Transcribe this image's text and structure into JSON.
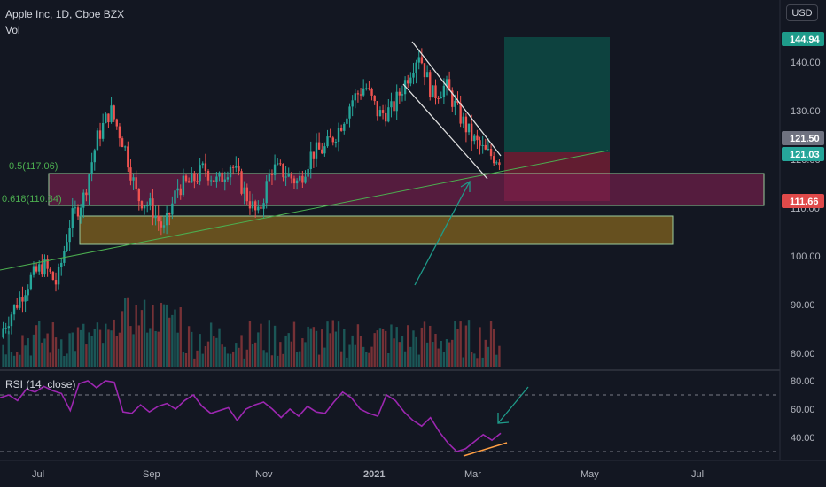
{
  "header": {
    "title": "Apple Inc, 1D, Cboe BZX",
    "volume_label": "Vol",
    "currency": "USD"
  },
  "rsi_panel": {
    "label": "RSI (14, close)",
    "ticks": [
      "80.00",
      "60.00",
      "40.00"
    ]
  },
  "price_axis": {
    "ticks": [
      "140.00",
      "130.00",
      "120.00",
      "110.00",
      "100.00",
      "90.00",
      "80.00"
    ],
    "tags": [
      {
        "text": "144.94",
        "bg": "#1e9b8a",
        "fg": "#ffffff"
      },
      {
        "text": "121.50",
        "bg": "#6f7280",
        "fg": "#ffffff"
      },
      {
        "text": "121.03",
        "bg": "#26a69a",
        "fg": "#ffffff"
      },
      {
        "text": "111.66",
        "bg": "#e04a4a",
        "fg": "#ffffff"
      }
    ]
  },
  "time_axis": {
    "labels": [
      "Jul",
      "Sep",
      "Nov",
      "2021",
      "Mar",
      "May",
      "Jul"
    ]
  },
  "fib_labels": [
    "0.5(117.06)",
    "0.618(110.34)"
  ],
  "colors": {
    "background": "#131722",
    "up": "#26a69a",
    "down": "#ef5350",
    "rsi_line": "#9c27b0",
    "trendline": "#4caf50",
    "fib_zone": "#7a1f4e",
    "support_zone": "#8a6a1e",
    "target_zone": "#0d4a44",
    "stop_zone": "#6b1e33",
    "arrow": "#1e9b8a"
  },
  "chart_data": [
    {
      "type": "candlestick",
      "title": "Apple Inc, 1D, Cboe BZX",
      "ylabel": "USD",
      "ylim": [
        78,
        150
      ],
      "x_labels": [
        "Jul",
        "Sep",
        "Nov",
        "2021",
        "Mar",
        "May",
        "Jul"
      ],
      "series": [
        {
          "name": "close",
          "points": [
            [
              "Jun",
              86
            ],
            [
              "Jul",
              91
            ],
            [
              "Jul",
              96
            ],
            [
              "Jul",
              99
            ],
            [
              "Jul",
              95
            ],
            [
              "Aug",
              108
            ],
            [
              "Aug",
              113
            ],
            [
              "Aug",
              125
            ],
            [
              "Aug",
              131
            ],
            [
              "Sep",
              124
            ],
            [
              "Sep",
              113
            ],
            [
              "Sep",
              111
            ],
            [
              "Sep",
              106
            ],
            [
              "Sep",
              115
            ],
            [
              "Oct",
              116
            ],
            [
              "Oct",
              119
            ],
            [
              "Oct",
              116
            ],
            [
              "Oct",
              120
            ],
            [
              "Oct",
              114
            ],
            [
              "Nov",
              109
            ],
            [
              "Nov",
              119
            ],
            [
              "Nov",
              118
            ],
            [
              "Nov",
              116
            ],
            [
              "Dec",
              122
            ],
            [
              "Dec",
              123
            ],
            [
              "Dec",
              127
            ],
            [
              "Dec",
              133
            ],
            [
              "Dec",
              136
            ],
            [
              "Jan",
              130
            ],
            [
              "Jan",
              131
            ],
            [
              "Jan",
              137
            ],
            [
              "Jan",
              143
            ],
            [
              "Feb",
              134
            ],
            [
              "Feb",
              136
            ],
            [
              "Feb",
              130
            ],
            [
              "Feb",
              125
            ],
            [
              "Mar",
              122
            ],
            [
              "Mar",
              121
            ]
          ]
        }
      ],
      "price_labels": [
        144.94,
        121.5,
        121.03,
        111.66
      ],
      "fibonacci": [
        {
          "level": 0.5,
          "price": 117.06
        },
        {
          "level": 0.618,
          "price": 110.34
        }
      ]
    },
    {
      "type": "line",
      "title": "RSI (14, close)",
      "ylim": [
        28,
        85
      ],
      "y_ticks": [
        80,
        60,
        40
      ],
      "series": [
        {
          "name": "RSI (14, close)",
          "values": [
            68,
            70,
            66,
            74,
            72,
            76,
            73,
            71,
            59,
            78,
            80,
            75,
            80,
            79,
            58,
            57,
            63,
            58,
            62,
            64,
            60,
            66,
            70,
            62,
            57,
            59,
            61,
            52,
            60,
            63,
            65,
            60,
            54,
            60,
            55,
            62,
            58,
            57,
            65,
            72,
            68,
            60,
            57,
            55,
            70,
            66,
            58,
            52,
            48,
            54,
            44,
            36,
            30,
            32,
            37,
            42,
            38,
            43
          ]
        }
      ]
    }
  ]
}
